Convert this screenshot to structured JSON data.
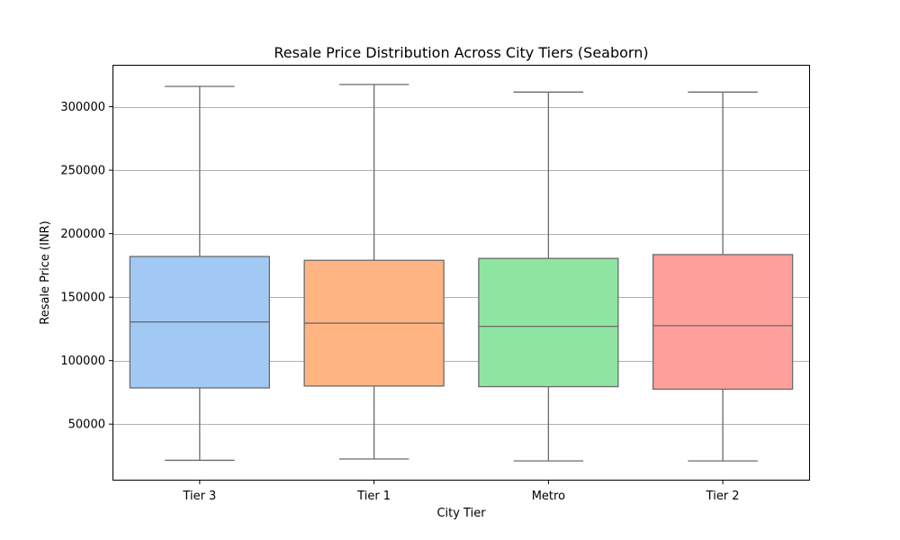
{
  "chart_data": {
    "type": "box",
    "title": "Resale Price Distribution Across City Tiers (Seaborn)",
    "xlabel": "City Tier",
    "ylabel": "Resale Price (INR)",
    "categories": [
      "Tier 3",
      "Tier 1",
      "Metro",
      "Tier 2"
    ],
    "boxes": [
      {
        "category": "Tier 3",
        "whisker_low": 21500,
        "q1": 78500,
        "median": 130500,
        "q3": 182000,
        "whisker_high": 316000,
        "color": "#a1c9f4"
      },
      {
        "category": "Tier 1",
        "whisker_low": 22500,
        "q1": 80000,
        "median": 129500,
        "q3": 179000,
        "whisker_high": 317500,
        "color": "#ffb482"
      },
      {
        "category": "Metro",
        "whisker_low": 21000,
        "q1": 79500,
        "median": 127000,
        "q3": 180500,
        "whisker_high": 311500,
        "color": "#8de5a1"
      },
      {
        "category": "Tier 2",
        "whisker_low": 21000,
        "q1": 77500,
        "median": 127500,
        "q3": 183500,
        "whisker_high": 311500,
        "color": "#ff9f9b"
      }
    ],
    "yticks": [
      50000,
      100000,
      150000,
      200000,
      250000,
      300000
    ],
    "ytick_labels": [
      "50000",
      "100000",
      "150000",
      "200000",
      "250000",
      "300000"
    ],
    "ylim": [
      5500,
      333000
    ],
    "grid_y": true,
    "line_color": "#6b6b6b",
    "grid_color": "#b0b0b0"
  }
}
